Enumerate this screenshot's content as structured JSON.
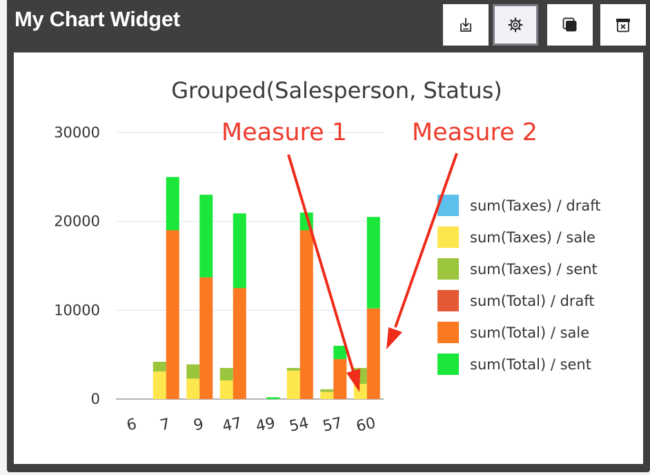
{
  "widget": {
    "title": "My Chart Widget",
    "toolbar": [
      {
        "name": "download-button",
        "icon": "download-icon"
      },
      {
        "name": "settings-button",
        "icon": "gear-icon"
      },
      {
        "name": "duplicate-button",
        "icon": "copy-icon"
      },
      {
        "name": "delete-button",
        "icon": "trash-icon"
      }
    ]
  },
  "colors": {
    "taxes_draft": "#5cbfec",
    "taxes_sale": "#fde74c",
    "taxes_sent": "#9bc53d",
    "total_draft": "#e55934",
    "total_sale": "#fa7921",
    "total_sent": "#1ae73a",
    "annotation": "#ef3b2c"
  },
  "chart_data": {
    "type": "bar",
    "title": "Grouped(Salesperson, Status)",
    "categories": [
      "6",
      "7",
      "9",
      "47",
      "49",
      "54",
      "57",
      "60"
    ],
    "yticks": [
      "0",
      "10000",
      "20000",
      "30000"
    ],
    "ylim": [
      0,
      30000
    ],
    "grid": true,
    "legend_position": "right",
    "stacked_groups": [
      {
        "group": "Taxes",
        "series": [
          {
            "name": "sum(Taxes) / draft",
            "color": "#5cbfec",
            "values": [
              0,
              0,
              0,
              0,
              0,
              0,
              0,
              0
            ]
          },
          {
            "name": "sum(Taxes) / sale",
            "color": "#fde74c",
            "values": [
              0,
              3100,
              2300,
              2100,
              0,
              3200,
              800,
              1700
            ]
          },
          {
            "name": "sum(Taxes) / sent",
            "color": "#9bc53d",
            "values": [
              0,
              1100,
              1600,
              1400,
              0,
              300,
              300,
              1800
            ]
          }
        ]
      },
      {
        "group": "Total",
        "series": [
          {
            "name": "sum(Total) / draft",
            "color": "#e55934",
            "values": [
              0,
              0,
              0,
              0,
              0,
              0,
              0,
              0
            ]
          },
          {
            "name": "sum(Total) / sale",
            "color": "#fa7921",
            "values": [
              0,
              19000,
              13700,
              12500,
              0,
              19000,
              4500,
              10200
            ]
          },
          {
            "name": "sum(Total) / sent",
            "color": "#1ae73a",
            "values": [
              0,
              6000,
              9300,
              8400,
              200,
              2000,
              1500,
              10300
            ]
          }
        ]
      }
    ],
    "annotations": [
      {
        "text": "Measure 1"
      },
      {
        "text": "Measure 2"
      }
    ]
  }
}
